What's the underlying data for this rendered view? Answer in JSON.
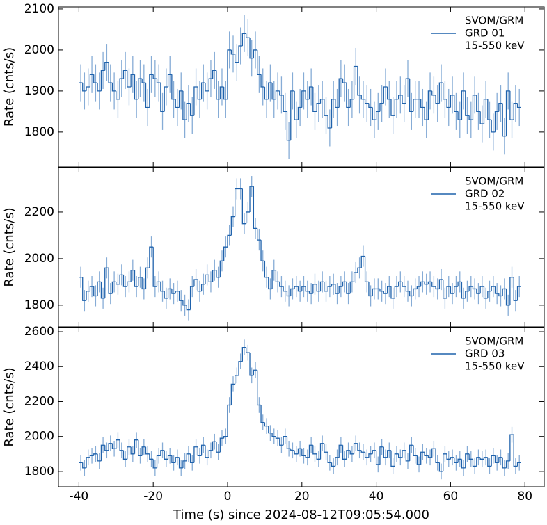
{
  "chart_data": [
    {
      "type": "step",
      "ylabel": "Rate (cnts/s)",
      "ylim": [
        1715,
        2105
      ],
      "yticks": [
        1800,
        1900,
        2000,
        2100
      ],
      "sharex": true,
      "series": [
        {
          "name_lines": [
            "SVOM/GRM",
            "GRD 01",
            "15-550 keV"
          ],
          "color": "#1f62ac",
          "error_color": "#86acd6",
          "error": 45,
          "values": [
            1920,
            1900,
            1910,
            1940,
            1920,
            1900,
            1950,
            1970,
            1920,
            1900,
            1880,
            1930,
            1950,
            1910,
            1940,
            1880,
            1930,
            1920,
            1860,
            1940,
            1930,
            1920,
            1850,
            1910,
            1940,
            1880,
            1860,
            1900,
            1830,
            1870,
            1840,
            1910,
            1880,
            1920,
            1900,
            1930,
            1950,
            1880,
            1910,
            1880,
            2000,
            1990,
            1970,
            2010,
            2040,
            2030,
            1980,
            2000,
            1940,
            1910,
            1880,
            1920,
            1880,
            1900,
            1890,
            1850,
            1780,
            1900,
            1830,
            1860,
            1900,
            1880,
            1910,
            1850,
            1870,
            1880,
            1840,
            1810,
            1880,
            1860,
            1930,
            1920,
            1860,
            1880,
            1960,
            1890,
            1880,
            1870,
            1860,
            1830,
            1850,
            1870,
            1910,
            1880,
            1840,
            1880,
            1890,
            1870,
            1930,
            1850,
            1880,
            1880,
            1860,
            1830,
            1900,
            1890,
            1870,
            1920,
            1880,
            1860,
            1890,
            1850,
            1830,
            1900,
            1840,
            1830,
            1890,
            1850,
            1820,
            1880,
            1830,
            1800,
            1850,
            1870,
            1790,
            1900,
            1830,
            1870,
            1860
          ]
        }
      ]
    },
    {
      "type": "step",
      "ylabel": "Rate (cnts/s)",
      "ylim": [
        1707,
        2391
      ],
      "yticks": [
        1800,
        2000,
        2200
      ],
      "sharex": true,
      "series": [
        {
          "name_lines": [
            "SVOM/GRM",
            "GRD 02",
            "15-550 keV"
          ],
          "color": "#1f62ac",
          "error_color": "#86acd6",
          "error": 45,
          "values": [
            1920,
            1820,
            1860,
            1880,
            1840,
            1900,
            1830,
            1960,
            1850,
            1900,
            1890,
            1930,
            1880,
            1900,
            1950,
            1880,
            1920,
            1870,
            1960,
            2050,
            1880,
            1900,
            1860,
            1830,
            1870,
            1850,
            1860,
            1820,
            1800,
            1780,
            1880,
            1910,
            1860,
            1890,
            1930,
            1900,
            1950,
            1920,
            1990,
            2050,
            2100,
            2180,
            2300,
            2300,
            2150,
            2200,
            2310,
            2130,
            2080,
            1990,
            1920,
            1870,
            1950,
            1900,
            1880,
            1860,
            1840,
            1870,
            1880,
            1860,
            1880,
            1860,
            1850,
            1890,
            1860,
            1900,
            1860,
            1880,
            1890,
            1850,
            1880,
            1900,
            1850,
            1900,
            1940,
            1960,
            2010,
            1900,
            1840,
            1870,
            1870,
            1860,
            1850,
            1880,
            1830,
            1880,
            1900,
            1880,
            1860,
            1840,
            1870,
            1880,
            1900,
            1890,
            1900,
            1880,
            1870,
            1910,
            1830,
            1880,
            1850,
            1880,
            1900,
            1830,
            1860,
            1880,
            1870,
            1850,
            1880,
            1830,
            1860,
            1880,
            1850,
            1840,
            1870,
            1800,
            1920,
            1820,
            1880
          ]
        }
      ]
    },
    {
      "type": "step",
      "ylabel": "Rate (cnts/s)",
      "xlabel": "Time (s) since 2024-08-12T09:05:54.000",
      "ylim": [
        1712,
        2624
      ],
      "yticks": [
        1800,
        2000,
        2200,
        2400,
        2600
      ],
      "xlim": [
        -45.5,
        85.2
      ],
      "xticks": [
        -40,
        -20,
        0,
        20,
        40,
        60,
        80
      ],
      "bin_width": 1,
      "x": [
        -40,
        -39,
        -38,
        -37,
        -36,
        -35,
        -34,
        -33,
        -32,
        -31,
        -30,
        -29,
        -28,
        -27,
        -26,
        -25,
        -24,
        -23,
        -22,
        -21,
        -20,
        -19,
        -18,
        -17,
        -16,
        -15,
        -14,
        -13,
        -12,
        -11,
        -10,
        -9,
        -8,
        -7,
        -6,
        -5,
        -4,
        -3,
        -2,
        -1,
        0,
        1,
        2,
        3,
        4,
        5,
        6,
        7,
        8,
        9,
        10,
        11,
        12,
        13,
        14,
        15,
        16,
        17,
        18,
        19,
        20,
        21,
        22,
        23,
        24,
        25,
        26,
        27,
        28,
        29,
        30,
        31,
        32,
        33,
        34,
        35,
        36,
        37,
        38,
        39,
        40,
        41,
        42,
        43,
        44,
        45,
        46,
        47,
        48,
        49,
        50,
        51,
        52,
        53,
        54,
        55,
        56,
        57,
        58,
        59,
        60,
        61,
        62,
        63,
        64,
        65,
        66,
        67,
        68,
        69,
        70,
        71,
        72,
        73,
        74,
        75,
        76,
        77,
        78
      ],
      "series": [
        {
          "name_lines": [
            "SVOM/GRM",
            "GRD 03",
            "15-550 keV"
          ],
          "color": "#1f62ac",
          "error_color": "#86acd6",
          "error": 45,
          "values": [
            1850,
            1820,
            1880,
            1890,
            1900,
            1860,
            1950,
            1920,
            1960,
            1930,
            1980,
            1920,
            1870,
            1940,
            1900,
            1980,
            1890,
            1940,
            1900,
            1870,
            1820,
            1890,
            1920,
            1870,
            1890,
            1850,
            1880,
            1820,
            1860,
            1900,
            1850,
            1940,
            1890,
            1950,
            1880,
            1920,
            1970,
            1910,
            1990,
            2000,
            2180,
            2300,
            2350,
            2430,
            2510,
            2480,
            2350,
            2380,
            2180,
            2080,
            2060,
            2020,
            2000,
            1990,
            1950,
            2000,
            1930,
            1920,
            1900,
            1930,
            1890,
            1880,
            1950,
            1900,
            1870,
            1960,
            1910,
            1850,
            1830,
            1880,
            1950,
            1870,
            1920,
            1900,
            1960,
            1920,
            1910,
            1880,
            1900,
            1920,
            1840,
            1940,
            1880,
            1920,
            1830,
            1900,
            1880,
            1920,
            1860,
            1950,
            1890,
            1840,
            1910,
            1890,
            1880,
            1930,
            1850,
            1800,
            1900,
            1870,
            1880,
            1850,
            1870,
            1820,
            1900,
            1870,
            1830,
            1880,
            1870,
            1880,
            1830,
            1890,
            1850,
            1880,
            1820,
            1860,
            2010,
            1830,
            1850
          ]
        }
      ]
    }
  ]
}
